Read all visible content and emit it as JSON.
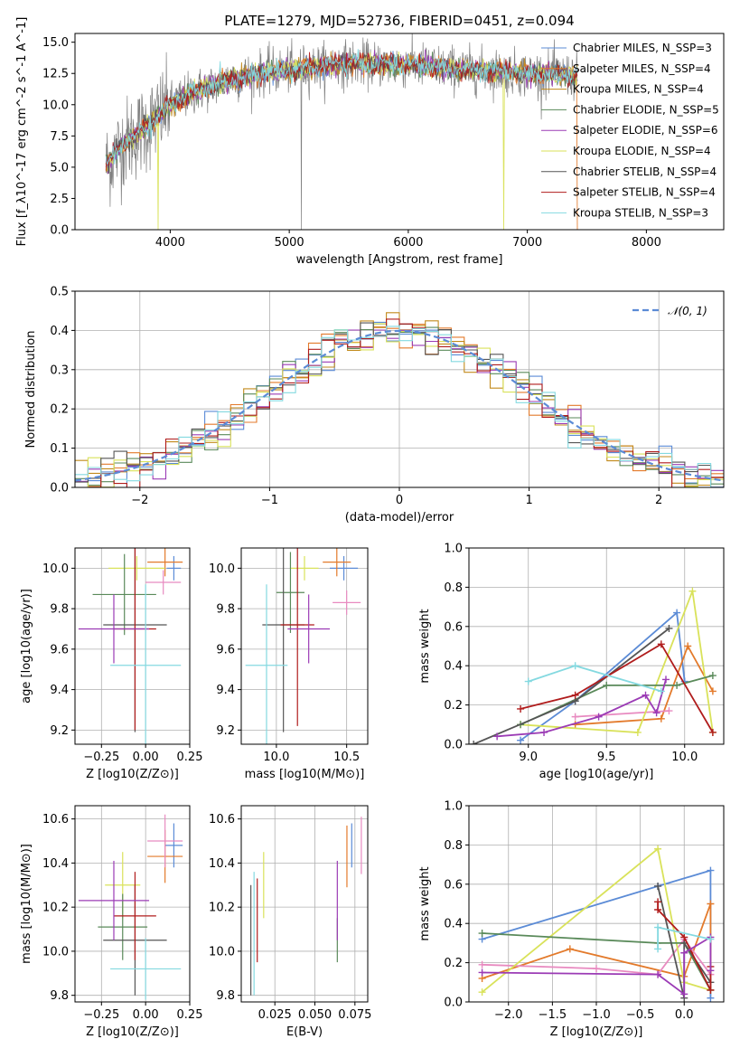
{
  "figure_title": "PLATE=1279, MJD=52736, FIBERID=0451, z=0.094",
  "palette": {
    "chabrier_miles": "#5b8bd6",
    "salpeter_miles": "#e37a2b",
    "kroupa_miles": "#c28a1c",
    "chabrier_elodie": "#5a8a5a",
    "salpeter_elodie": "#9b3bb5",
    "kroupa_elodie": "#d9e25a",
    "chabrier_stelib": "#555555",
    "salpeter_stelib": "#b01c1c",
    "kroupa_stelib": "#84d9e0",
    "data_grey": "#808080",
    "pink": "#e88ac0",
    "normal_curve": "#5b8bd6"
  },
  "chart_data": [
    {
      "id": "spectrum",
      "type": "line",
      "xlabel": "wavelength [Angstrom, rest frame]",
      "ylabel": "Flux [f_λ10^-17 erg cm^-2 s^-1 A^-1]",
      "xlim": [
        3200,
        8650
      ],
      "ylim": [
        0,
        15.7
      ],
      "xticks": [
        4000,
        5000,
        6000,
        7000,
        8000
      ],
      "yticks": [
        0.0,
        2.5,
        5.0,
        7.5,
        10.0,
        12.5,
        15.0
      ],
      "grid": false,
      "legend_position": "upper-right",
      "legend": [
        "Chabrier MILES, N_SSP=3",
        "Salpeter MILES, N_SSP=4",
        "Kroupa MILES, N_SSP=4",
        "Chabrier ELODIE, N_SSP=5",
        "Salpeter ELODIE, N_SSP=6",
        "Kroupa ELODIE, N_SSP=4",
        "Chabrier STELIB, N_SSP=4",
        "Salpeter STELIB, N_SSP=4",
        "Kroupa STELIB, N_SSP=3"
      ],
      "model_envelope": {
        "x": [
          3450,
          3600,
          3800,
          4000,
          4200,
          4500,
          4800,
          5000,
          5500,
          6000,
          6500,
          7000,
          7400
        ],
        "y": [
          5.0,
          6.8,
          8.2,
          10.0,
          11.0,
          12.0,
          12.6,
          12.8,
          13.3,
          13.2,
          12.8,
          12.5,
          12.3
        ]
      }
    },
    {
      "id": "residuals",
      "type": "line",
      "xlabel": "(data-model)/error",
      "ylabel": "Normed distribution",
      "xlim": [
        -2.5,
        2.5
      ],
      "ylim": [
        0,
        0.5
      ],
      "xticks": [
        -2,
        -1,
        0,
        1,
        2
      ],
      "yticks": [
        0.0,
        0.1,
        0.2,
        0.3,
        0.4,
        0.5
      ],
      "grid": true,
      "legend_position": "upper-right",
      "legend": [
        "𝒩(0, 1)"
      ]
    },
    {
      "id": "age_vs_Z",
      "type": "scatter",
      "xlabel": "Z [log10(Z/Z⊙)]",
      "ylabel": "age  [log10(age/yr)]",
      "xlim": [
        -0.4,
        0.25
      ],
      "ylim": [
        9.13,
        10.1
      ],
      "xticks": [
        -0.25,
        0.0,
        0.25
      ],
      "xticklabels": [
        "−0.25",
        "0.00",
        "0.25"
      ],
      "yticks": [
        9.2,
        9.4,
        9.6,
        9.8,
        10.0
      ],
      "grid": true,
      "points": [
        {
          "color": "chabrier_miles",
          "x": 0.16,
          "xerr": 0.04,
          "y": 10.0,
          "yerr": 0.06
        },
        {
          "color": "salpeter_miles",
          "x": 0.11,
          "xerr": 0.1,
          "y": 10.03,
          "yerr": 0.07
        },
        {
          "color": "pink",
          "x": 0.1,
          "xerr": 0.1,
          "y": 9.93,
          "yerr": 0.06
        },
        {
          "color": "kroupa_elodie",
          "x": -0.05,
          "xerr": 0.16,
          "y": 10.0,
          "yerr": 0.06
        },
        {
          "color": "chabrier_elodie",
          "x": -0.12,
          "xerr": 0.18,
          "y": 9.87,
          "yerr": 0.2
        },
        {
          "color": "chabrier_stelib",
          "x": -0.06,
          "xerr": 0.18,
          "y": 9.72,
          "yerr": 0.53
        },
        {
          "color": "salpeter_stelib",
          "x": -0.06,
          "xerr": 0.12,
          "y": 9.7,
          "yerr": 0.5
        },
        {
          "color": "salpeter_elodie",
          "x": -0.18,
          "xerr": 0.2,
          "y": 9.7,
          "yerr": 0.17
        },
        {
          "color": "kroupa_stelib",
          "x": 0.0,
          "xerr": 0.2,
          "y": 9.52,
          "yerr": 0.4
        }
      ]
    },
    {
      "id": "age_vs_mass",
      "type": "scatter",
      "xlabel": "mass [log10(M/M⊙)]",
      "ylabel": "",
      "xlim": [
        9.75,
        10.65
      ],
      "ylim": [
        9.13,
        10.1
      ],
      "xticks": [
        10.0,
        10.5
      ],
      "xticklabels": [
        "10.0",
        "10.5"
      ],
      "yticks": [
        9.2,
        9.4,
        9.6,
        9.8,
        10.0
      ],
      "grid": true,
      "points": [
        {
          "color": "chabrier_miles",
          "x": 10.48,
          "xerr": 0.1,
          "y": 10.0,
          "yerr": 0.06
        },
        {
          "color": "salpeter_miles",
          "x": 10.43,
          "xerr": 0.1,
          "y": 10.03,
          "yerr": 0.07
        },
        {
          "color": "pink",
          "x": 10.5,
          "xerr": 0.1,
          "y": 9.83,
          "yerr": 0.06
        },
        {
          "color": "kroupa_elodie",
          "x": 10.2,
          "xerr": 0.1,
          "y": 10.0,
          "yerr": 0.06
        },
        {
          "color": "chabrier_elodie",
          "x": 10.1,
          "xerr": 0.1,
          "y": 9.88,
          "yerr": 0.2
        },
        {
          "color": "chabrier_stelib",
          "x": 10.05,
          "xerr": 0.15,
          "y": 9.72,
          "yerr": 0.53
        },
        {
          "color": "salpeter_stelib",
          "x": 10.15,
          "xerr": 0.12,
          "y": 9.72,
          "yerr": 0.5
        },
        {
          "color": "salpeter_elodie",
          "x": 10.23,
          "xerr": 0.15,
          "y": 9.7,
          "yerr": 0.17
        },
        {
          "color": "kroupa_stelib",
          "x": 9.93,
          "xerr": 0.15,
          "y": 9.52,
          "yerr": 0.4
        }
      ]
    },
    {
      "id": "weight_vs_age",
      "type": "line",
      "xlabel": "age  [log10(age/yr)]",
      "ylabel": "mass weight",
      "xlim": [
        8.62,
        10.25
      ],
      "ylim": [
        0,
        1.0
      ],
      "xticks": [
        9.0,
        9.5,
        10.0
      ],
      "xticklabels": [
        "9.0",
        "9.5",
        "10.0"
      ],
      "yticks": [
        0.0,
        0.2,
        0.4,
        0.6,
        0.8,
        1.0
      ],
      "grid": true,
      "series": [
        {
          "color": "chabrier_miles",
          "x": [
            8.95,
            9.3,
            9.95,
            10.0
          ],
          "y": [
            0.02,
            0.22,
            0.67,
            0.32
          ]
        },
        {
          "color": "salpeter_miles",
          "x": [
            9.3,
            9.85,
            10.02,
            10.18
          ],
          "y": [
            0.1,
            0.13,
            0.5,
            0.27
          ]
        },
        {
          "color": "pink",
          "x": [
            9.3,
            9.9
          ],
          "y": [
            0.14,
            0.17
          ]
        },
        {
          "color": "kroupa_elodie",
          "x": [
            8.95,
            9.7,
            10.05,
            10.18
          ],
          "y": [
            0.1,
            0.06,
            0.78,
            0.06
          ]
        },
        {
          "color": "chabrier_elodie",
          "x": [
            8.95,
            9.5,
            9.95,
            10.18
          ],
          "y": [
            0.1,
            0.3,
            0.3,
            0.35
          ]
        },
        {
          "color": "chabrier_stelib",
          "x": [
            8.65,
            9.3,
            9.9
          ],
          "y": [
            0.0,
            0.22,
            0.59
          ]
        },
        {
          "color": "salpeter_stelib",
          "x": [
            8.95,
            9.3,
            9.85,
            10.18
          ],
          "y": [
            0.18,
            0.25,
            0.51,
            0.06
          ]
        },
        {
          "color": "salpeter_elodie",
          "x": [
            8.8,
            9.1,
            9.45,
            9.75,
            9.82,
            9.88
          ],
          "y": [
            0.04,
            0.06,
            0.14,
            0.25,
            0.16,
            0.33
          ]
        },
        {
          "color": "kroupa_stelib",
          "x": [
            9.0,
            9.3,
            9.85
          ],
          "y": [
            0.32,
            0.4,
            0.27
          ]
        }
      ]
    },
    {
      "id": "mass_vs_Z",
      "type": "scatter",
      "xlabel": "Z [log10(Z/Z⊙)]",
      "ylabel": "mass [log10(M/M⊙)]",
      "xlim": [
        -0.4,
        0.25
      ],
      "ylim": [
        9.77,
        10.66
      ],
      "xticks": [
        -0.25,
        0.0,
        0.25
      ],
      "xticklabels": [
        "−0.25",
        "0.00",
        "0.25"
      ],
      "yticks": [
        9.8,
        10.0,
        10.2,
        10.4,
        10.6
      ],
      "grid": true,
      "points": [
        {
          "color": "chabrier_miles",
          "x": 0.16,
          "xerr": 0.05,
          "y": 10.48,
          "yerr": 0.1
        },
        {
          "color": "salpeter_miles",
          "x": 0.11,
          "xerr": 0.1,
          "y": 10.43,
          "yerr": 0.12
        },
        {
          "color": "pink",
          "x": 0.11,
          "xerr": 0.1,
          "y": 10.5,
          "yerr": 0.12
        },
        {
          "color": "kroupa_elodie",
          "x": -0.13,
          "xerr": 0.1,
          "y": 10.3,
          "yerr": 0.15
        },
        {
          "color": "chabrier_elodie",
          "x": -0.13,
          "xerr": 0.14,
          "y": 10.11,
          "yerr": 0.15
        },
        {
          "color": "chabrier_stelib",
          "x": -0.06,
          "xerr": 0.18,
          "y": 10.05,
          "yerr": 0.25
        },
        {
          "color": "salpeter_stelib",
          "x": -0.06,
          "xerr": 0.12,
          "y": 10.16,
          "yerr": 0.2
        },
        {
          "color": "salpeter_elodie",
          "x": -0.18,
          "xerr": 0.2,
          "y": 10.23,
          "yerr": 0.18
        },
        {
          "color": "kroupa_stelib",
          "x": 0.0,
          "xerr": 0.2,
          "y": 9.92,
          "yerr": 0.14
        }
      ]
    },
    {
      "id": "mass_vs_ebv",
      "type": "scatter",
      "xlabel": "E(B-V)",
      "ylabel": "",
      "xlim": [
        0.004,
        0.083
      ],
      "ylim": [
        9.77,
        10.66
      ],
      "xticks": [
        0.025,
        0.05,
        0.075
      ],
      "xticklabels": [
        "0.025",
        "0.050",
        "0.075"
      ],
      "yticks": [
        9.8,
        10.0,
        10.2,
        10.4,
        10.6
      ],
      "grid": true,
      "points": [
        {
          "color": "chabrier_miles",
          "x": 0.073,
          "y": 10.48,
          "yerr": 0.1
        },
        {
          "color": "salpeter_miles",
          "x": 0.07,
          "y": 10.43,
          "yerr": 0.14
        },
        {
          "color": "pink",
          "x": 0.079,
          "y": 10.48,
          "yerr": 0.13
        },
        {
          "color": "kroupa_elodie",
          "x": 0.018,
          "y": 10.3,
          "yerr": 0.15
        },
        {
          "color": "chabrier_elodie",
          "x": 0.064,
          "y": 10.05,
          "yerr": 0.1
        },
        {
          "color": "chabrier_stelib",
          "x": 0.01,
          "y": 10.05,
          "yerr": 0.25
        },
        {
          "color": "salpeter_stelib",
          "x": 0.014,
          "y": 10.14,
          "yerr": 0.19
        },
        {
          "color": "salpeter_elodie",
          "x": 0.064,
          "y": 10.23,
          "yerr": 0.18
        },
        {
          "color": "kroupa_stelib",
          "x": 0.012,
          "y": 10.08,
          "yerr": 0.28
        }
      ]
    },
    {
      "id": "weight_vs_Z",
      "type": "line",
      "xlabel": "Z [log10(Z/Z⊙)]",
      "ylabel": "mass weight",
      "xlim": [
        -2.45,
        0.45
      ],
      "ylim": [
        0,
        1.0
      ],
      "xticks": [
        -2.0,
        -1.5,
        -1.0,
        -0.5,
        0.0
      ],
      "xticklabels": [
        "−2.0",
        "−1.5",
        "−1.0",
        "−0.5",
        "0.0"
      ],
      "yticks": [
        0.0,
        0.2,
        0.4,
        0.6,
        0.8,
        1.0
      ],
      "grid": true,
      "series": [
        {
          "color": "chabrier_miles",
          "x": [
            -2.3,
            -0.3,
            0.3,
            0.3
          ],
          "y": [
            0.32,
            0.59,
            0.67,
            0.02
          ]
        },
        {
          "color": "salpeter_miles",
          "x": [
            -2.3,
            -1.3,
            0.0,
            0.3,
            0.3
          ],
          "y": [
            0.12,
            0.27,
            0.13,
            0.5,
            0.06
          ]
        },
        {
          "color": "pink",
          "x": [
            -2.3,
            -1.0,
            -0.3,
            0.0,
            0.3
          ],
          "y": [
            0.19,
            0.17,
            0.14,
            0.32,
            0.14
          ]
        },
        {
          "color": "kroupa_elodie",
          "x": [
            -2.3,
            -0.3,
            0.0,
            0.3
          ],
          "y": [
            0.05,
            0.78,
            0.1,
            0.06
          ]
        },
        {
          "color": "chabrier_elodie",
          "x": [
            -2.3,
            -0.3,
            0.0,
            0.3
          ],
          "y": [
            0.35,
            0.3,
            0.3,
            0.06
          ]
        },
        {
          "color": "chabrier_stelib",
          "x": [
            -0.3,
            0.0,
            0.0,
            0.3
          ],
          "y": [
            0.59,
            0.02,
            0.3,
            0.1
          ]
        },
        {
          "color": "salpeter_stelib",
          "x": [
            -0.3,
            -0.3,
            0.0,
            0.3,
            0.3
          ],
          "y": [
            0.51,
            0.47,
            0.33,
            0.06,
            0.18
          ]
        },
        {
          "color": "salpeter_elodie",
          "x": [
            -2.3,
            -0.3,
            0.0,
            0.0,
            0.3,
            0.3
          ],
          "y": [
            0.15,
            0.14,
            0.04,
            0.25,
            0.33,
            0.16
          ]
        },
        {
          "color": "kroupa_stelib",
          "x": [
            -0.3,
            -0.3,
            0.3
          ],
          "y": [
            0.27,
            0.38,
            0.32
          ]
        }
      ]
    }
  ]
}
